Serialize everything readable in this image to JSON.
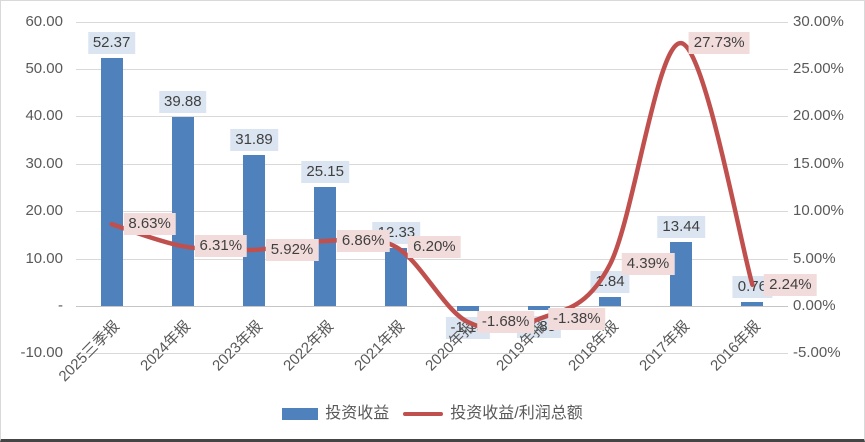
{
  "chart_data": {
    "type": "bar",
    "title": "",
    "categories": [
      "2025三季报",
      "2024年报",
      "2023年报",
      "2022年报",
      "2021年报",
      "2020年报",
      "2019年报",
      "2018年报",
      "2017年报",
      "2016年报"
    ],
    "series": [
      {
        "name": "投资收益",
        "type": "bar",
        "axis": "left",
        "color": "#4F81BD",
        "values": [
          52.37,
          39.88,
          31.89,
          25.15,
          12.33,
          -1.13,
          -0.85,
          1.84,
          13.44,
          0.76
        ],
        "labels": [
          "52.37",
          "39.88",
          "31.89",
          "25.15",
          "12.33",
          "-1.13",
          "-0.85",
          "1.84",
          "13.44",
          "0.76"
        ],
        "label_bg": "#DBE5F1"
      },
      {
        "name": "投资收益/利润总额",
        "type": "line",
        "axis": "right",
        "color": "#C0504D",
        "values": [
          8.63,
          6.31,
          5.92,
          6.86,
          6.2,
          -1.68,
          -1.38,
          4.39,
          27.73,
          2.24
        ],
        "labels": [
          "8.63%",
          "6.31%",
          "5.92%",
          "6.86%",
          "6.20%",
          "-1.68%",
          "-1.38%",
          "4.39%",
          "27.73%",
          "2.24%"
        ],
        "label_bg": "#F2DCDB"
      }
    ],
    "left_axis": {
      "ticks": [
        "60.00",
        "50.00",
        "40.00",
        "30.00",
        "20.00",
        "10.00",
        "-",
        "-10.00"
      ],
      "values": [
        60,
        50,
        40,
        30,
        20,
        10,
        0,
        -10
      ],
      "range": [
        -10,
        60
      ]
    },
    "right_axis": {
      "ticks": [
        "30.00%",
        "25.00%",
        "20.00%",
        "15.00%",
        "10.00%",
        "5.00%",
        "0.00%",
        "-5.00%"
      ],
      "values": [
        30,
        25,
        20,
        15,
        10,
        5,
        0,
        -5
      ],
      "range": [
        -5,
        30
      ]
    },
    "legend": {
      "position": "bottom",
      "items": [
        {
          "label": "投资收益",
          "swatch": "bar",
          "color": "#4F81BD"
        },
        {
          "label": "投资收益/利润总额",
          "swatch": "line",
          "color": "#C0504D"
        }
      ]
    },
    "grid": true,
    "colors": {
      "grid": "#D9D9D9",
      "zero_line": "#C6C6C6",
      "axis_text": "#595959",
      "label_text": "#404040",
      "background": "#FFFFFF",
      "border": "#D9D9D9",
      "bottom_rule": "#454545"
    }
  }
}
